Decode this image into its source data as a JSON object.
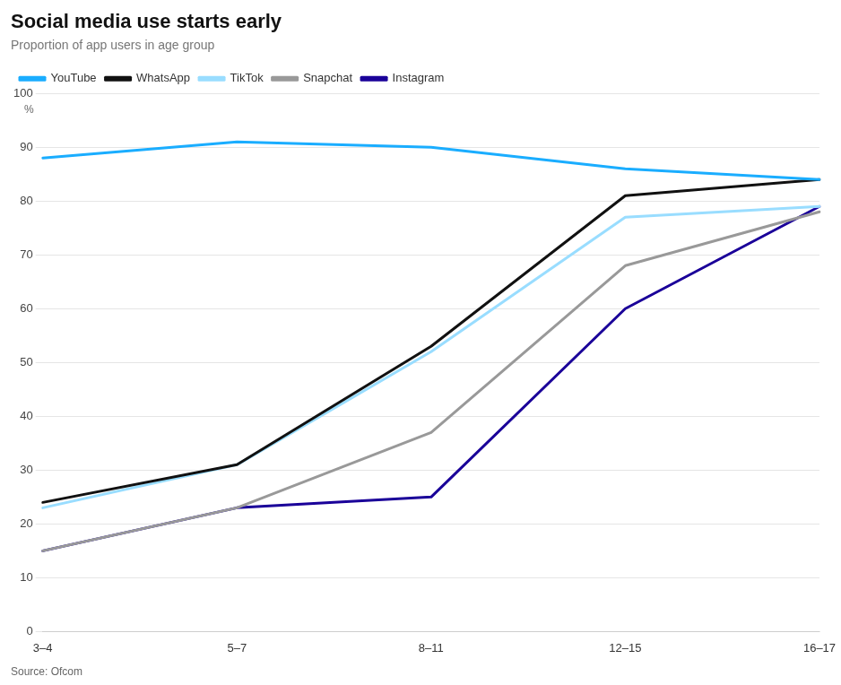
{
  "chart_data": {
    "type": "line",
    "title": "Social media use starts early",
    "subtitle": "Proportion of app users in age group",
    "source": "Source: Ofcom",
    "annotations": [
      "%"
    ],
    "categories": [
      "3–4",
      "5–7",
      "8–11",
      "12–15",
      "16–17"
    ],
    "series": [
      {
        "name": "YouTube",
        "color": "#1AADFF",
        "values": [
          88,
          91,
          90,
          86,
          84
        ]
      },
      {
        "name": "WhatsApp",
        "color": "#111111",
        "values": [
          24,
          31,
          53,
          81,
          84
        ]
      },
      {
        "name": "TikTok",
        "color": "#99DDFF",
        "values": [
          23,
          31,
          52,
          77,
          79
        ]
      },
      {
        "name": "Snapchat",
        "color": "#999999",
        "values": [
          15,
          23,
          37,
          68,
          78
        ]
      },
      {
        "name": "Instagram",
        "color": "#1A0099",
        "values": [
          15,
          23,
          25,
          60,
          79
        ]
      }
    ],
    "ylim": [
      0,
      100
    ],
    "yticks": [
      0,
      10,
      20,
      30,
      40,
      50,
      60,
      70,
      80,
      90,
      100
    ],
    "grid": true,
    "legend": "top"
  }
}
